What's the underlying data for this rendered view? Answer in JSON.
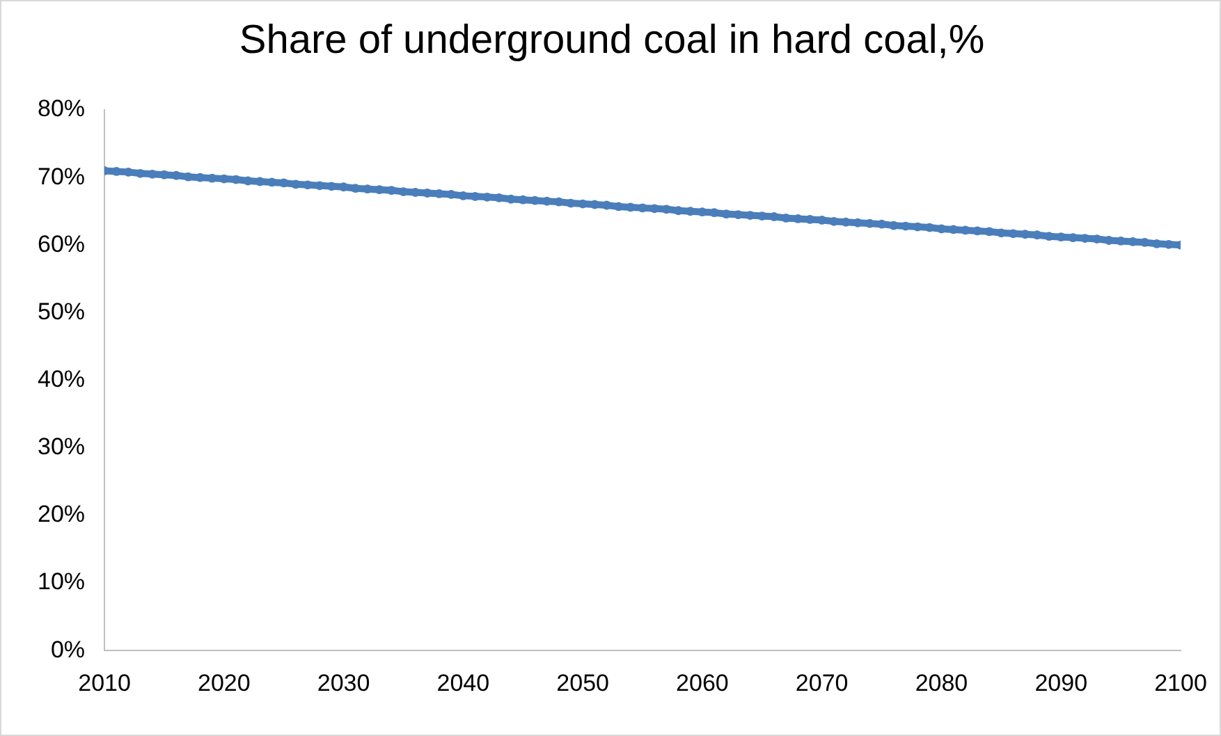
{
  "chart_data": {
    "type": "line",
    "title": "Share of underground coal in hard coal,%",
    "x": [
      2010,
      2011,
      2012,
      2013,
      2014,
      2015,
      2016,
      2017,
      2018,
      2019,
      2020,
      2021,
      2022,
      2023,
      2024,
      2025,
      2026,
      2027,
      2028,
      2029,
      2030,
      2031,
      2032,
      2033,
      2034,
      2035,
      2036,
      2037,
      2038,
      2039,
      2040,
      2041,
      2042,
      2043,
      2044,
      2045,
      2046,
      2047,
      2048,
      2049,
      2050,
      2051,
      2052,
      2053,
      2054,
      2055,
      2056,
      2057,
      2058,
      2059,
      2060,
      2061,
      2062,
      2063,
      2064,
      2065,
      2066,
      2067,
      2068,
      2069,
      2070,
      2071,
      2072,
      2073,
      2074,
      2075,
      2076,
      2077,
      2078,
      2079,
      2080,
      2081,
      2082,
      2083,
      2084,
      2085,
      2086,
      2087,
      2088,
      2089,
      2090,
      2091,
      2092,
      2093,
      2094,
      2095,
      2096,
      2097,
      2098,
      2099,
      2100
    ],
    "series": [
      {
        "color": "#4a7ebb",
        "values": [
          71.0,
          70.9,
          70.8,
          70.6,
          70.5,
          70.4,
          70.3,
          70.1,
          70.0,
          69.9,
          69.8,
          69.7,
          69.5,
          69.4,
          69.3,
          69.2,
          69.0,
          68.9,
          68.8,
          68.7,
          68.6,
          68.4,
          68.3,
          68.2,
          68.1,
          67.9,
          67.8,
          67.7,
          67.6,
          67.5,
          67.3,
          67.2,
          67.1,
          67.0,
          66.8,
          66.7,
          66.6,
          66.5,
          66.4,
          66.2,
          66.1,
          66.0,
          65.9,
          65.7,
          65.6,
          65.5,
          65.4,
          65.3,
          65.1,
          65.0,
          64.9,
          64.8,
          64.6,
          64.5,
          64.4,
          64.3,
          64.2,
          64.0,
          63.9,
          63.8,
          63.7,
          63.5,
          63.4,
          63.3,
          63.2,
          63.1,
          62.9,
          62.8,
          62.7,
          62.6,
          62.4,
          62.3,
          62.2,
          62.1,
          62.0,
          61.8,
          61.7,
          61.6,
          61.5,
          61.3,
          61.2,
          61.1,
          61.0,
          60.9,
          60.7,
          60.6,
          60.5,
          60.4,
          60.2,
          60.1,
          60.0
        ]
      }
    ],
    "xlim": [
      2010,
      2100
    ],
    "xticks": [
      2010,
      2020,
      2030,
      2040,
      2050,
      2060,
      2070,
      2080,
      2090,
      2100
    ],
    "ylim": [
      0,
      80
    ],
    "yticks": [
      {
        "value": 0,
        "label": "0%"
      },
      {
        "value": 10,
        "label": "10%"
      },
      {
        "value": 20,
        "label": "20%"
      },
      {
        "value": 30,
        "label": "30%"
      },
      {
        "value": 40,
        "label": "40%"
      },
      {
        "value": 50,
        "label": "50%"
      },
      {
        "value": 60,
        "label": "60%"
      },
      {
        "value": 70,
        "label": "70%"
      },
      {
        "value": 80,
        "label": "80%"
      }
    ],
    "marker": "circle"
  }
}
